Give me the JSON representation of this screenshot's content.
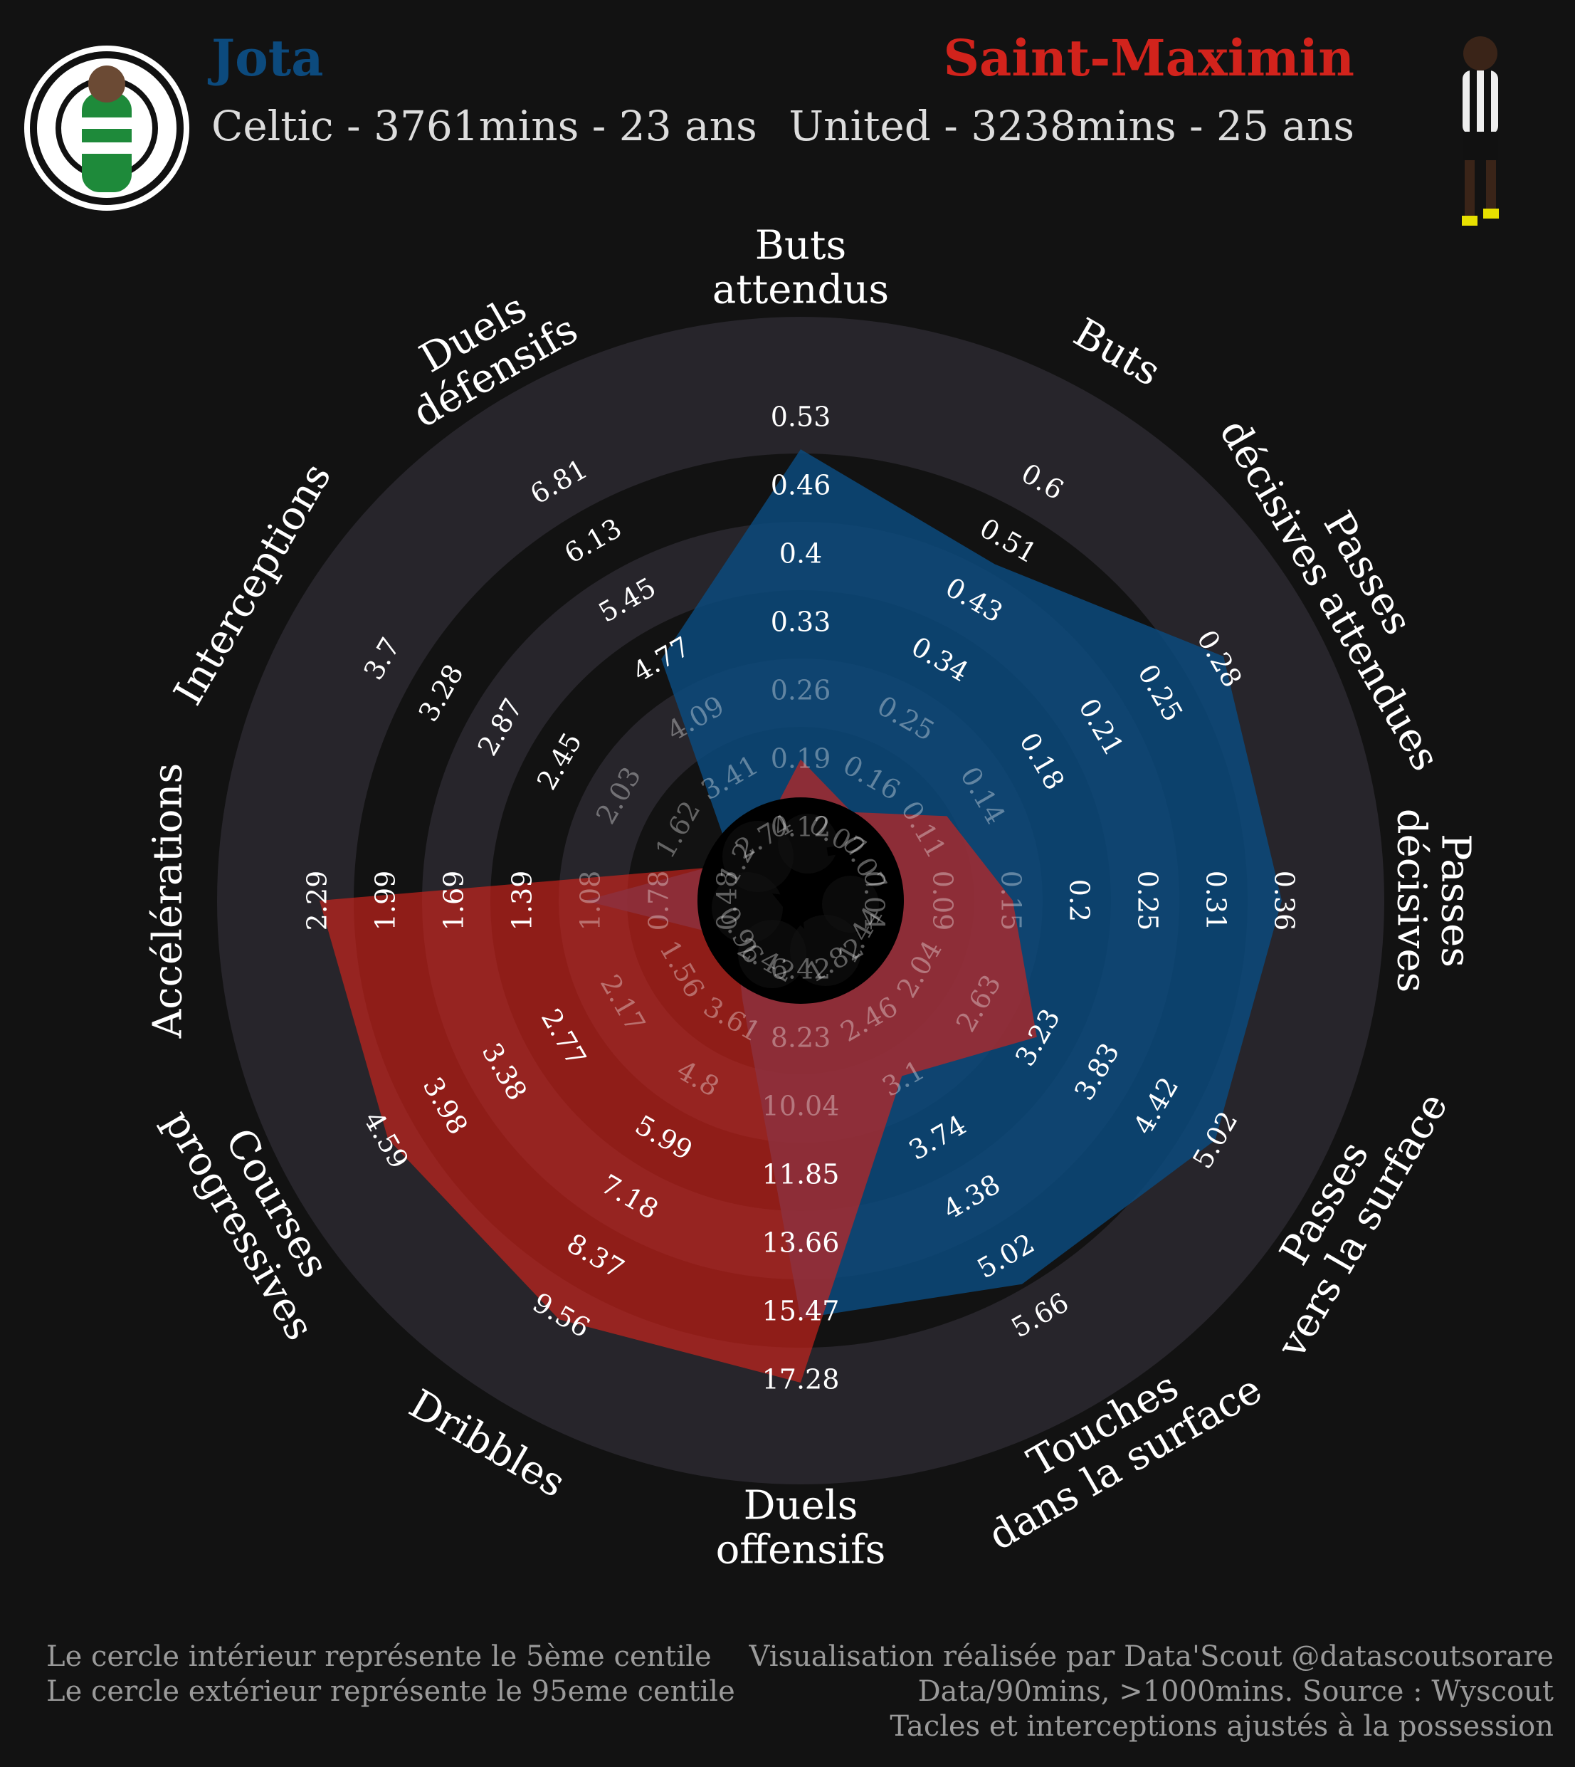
{
  "header": {
    "player1": {
      "name": "Jota",
      "info": "Celtic - 3761mins - 23 ans",
      "color": "#0c4a7d"
    },
    "player2": {
      "name": "Saint-Maximin",
      "info": "United - 3238mins - 25 ans",
      "color": "#d2231c"
    },
    "badge_icon": "celtic-badge-icon",
    "photo_icon": "player-photo-icon"
  },
  "footer": {
    "left": [
      "Le cercle intérieur représente le 5ème centile",
      "Le cercle extérieur représente le 95eme centile"
    ],
    "right": [
      "Visualisation réalisée par Data'Scout @datascoutsorare",
      "Data/90mins, >1000mins. Source : Wyscout ",
      "Tacles et interceptions ajustés à la possession"
    ]
  },
  "center_logo": "datascout-logo-icon",
  "colors": {
    "background": "#121212",
    "ring": "#27252b",
    "player1": "#0c4a7d",
    "player2": "#d2231c"
  },
  "chart_data": {
    "type": "radar",
    "categories": [
      [
        "Buts",
        "attendus"
      ],
      [
        "Buts"
      ],
      [
        "Passes",
        "décisives attendues"
      ],
      [
        "Passes",
        "décisives"
      ],
      [
        "Passes",
        "vers la surface"
      ],
      [
        "Touches",
        "dans la surface"
      ],
      [
        "Duels",
        "offensifs"
      ],
      [
        "Dribbles"
      ],
      [
        "Courses",
        "progressives"
      ],
      [
        "Accélérations"
      ],
      [
        "Interceptions"
      ],
      [
        "Duels",
        "défensifs"
      ]
    ],
    "tick_labels": [
      [
        "0.12",
        "0.19",
        "0.26",
        "0.33",
        "0.4",
        "0.46",
        "0.53"
      ],
      [
        "0.07",
        "0.16",
        "0.25",
        "0.34",
        "0.43",
        "0.51",
        "0.6"
      ],
      [
        "0.07",
        "0.11",
        "0.14",
        "0.18",
        "0.21",
        "0.25",
        "0.28"
      ],
      [
        "0.04",
        "0.09",
        "0.15",
        "0.2",
        "0.25",
        "0.31",
        "0.36"
      ],
      [
        "1.44",
        "2.04",
        "2.63",
        "3.23",
        "3.83",
        "4.42",
        "5.02"
      ],
      [
        "1.82",
        "2.46",
        "3.1",
        "3.74",
        "4.38",
        "5.02",
        "5.66"
      ],
      [
        "6.42",
        "8.23",
        "10.04",
        "11.85",
        "13.66",
        "15.47",
        "17.28"
      ],
      [
        "2.42",
        "3.61",
        "4.8",
        "5.99",
        "7.18",
        "8.37",
        "9.56"
      ],
      [
        "0.96",
        "1.56",
        "2.17",
        "2.77",
        "3.38",
        "3.98",
        "4.59"
      ],
      [
        "0.48",
        "0.78",
        "1.08",
        "1.39",
        "1.69",
        "1.99",
        "2.29"
      ],
      [
        "1.2",
        "1.62",
        "2.03",
        "2.45",
        "2.87",
        "3.28",
        "3.7"
      ],
      [
        "2.74",
        "3.41",
        "4.09",
        "4.77",
        "5.45",
        "6.13",
        "6.81"
      ]
    ],
    "series": [
      {
        "name": "Jota",
        "color": "#0c4a7d",
        "values": [
          0.5,
          0.48,
          0.285,
          0.36,
          5.0,
          5.3,
          15.6,
          3.2,
          1.0,
          1.12,
          1.25,
          4.8
        ]
      },
      {
        "name": "Saint-Maximin",
        "color": "#d2231c",
        "values": [
          0.19,
          0.11,
          0.12,
          0.15,
          3.2,
          3.05,
          17.3,
          9.6,
          4.55,
          2.29,
          1.2,
          2.8
        ]
      }
    ]
  }
}
